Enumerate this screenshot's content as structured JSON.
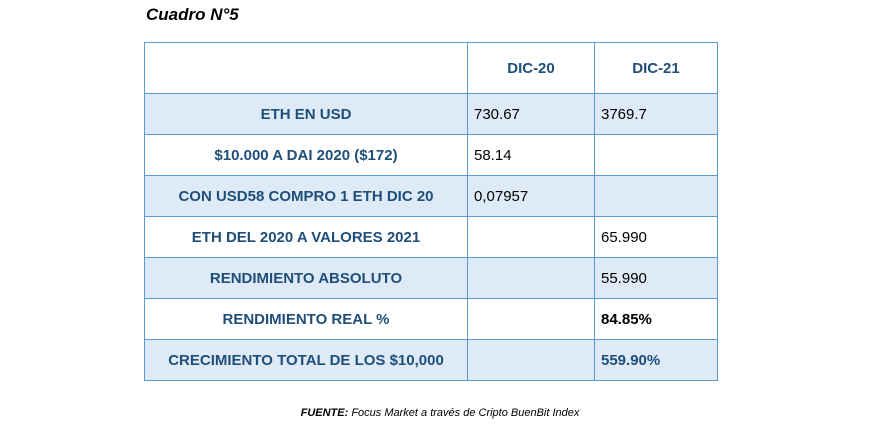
{
  "caption": "Cuadro N°5",
  "table": {
    "headers": [
      "",
      "DIC-20",
      "DIC-21"
    ],
    "rows": [
      {
        "label": "ETH EN USD",
        "dic20": "730.67",
        "dic21": "3769.7"
      },
      {
        "label": "$10.000 A DAI 2020 ($172)",
        "dic20": "58.14",
        "dic21": ""
      },
      {
        "label": "CON USD58 COMPRO 1 ETH DIC 20",
        "dic20": "0,07957",
        "dic21": ""
      },
      {
        "label": "ETH DEL 2020 A VALORES 2021",
        "dic20": "",
        "dic21": "65.990"
      },
      {
        "label": "RENDIMIENTO ABSOLUTO",
        "dic20": "",
        "dic21": "55.990"
      },
      {
        "label": "RENDIMIENTO REAL %",
        "dic20": "",
        "dic21": "84.85%"
      },
      {
        "label": "CRECIMIENTO TOTAL DE LOS $10,000",
        "dic20": "",
        "dic21": "559.90%"
      }
    ]
  },
  "source": {
    "key": "FUENTE:",
    "text": " Focus Market a través de Cripto BuenBit Index"
  },
  "colors": {
    "border": "#5b9bd5",
    "shade": "#deeaf6",
    "label_text": "#1f4e79"
  }
}
